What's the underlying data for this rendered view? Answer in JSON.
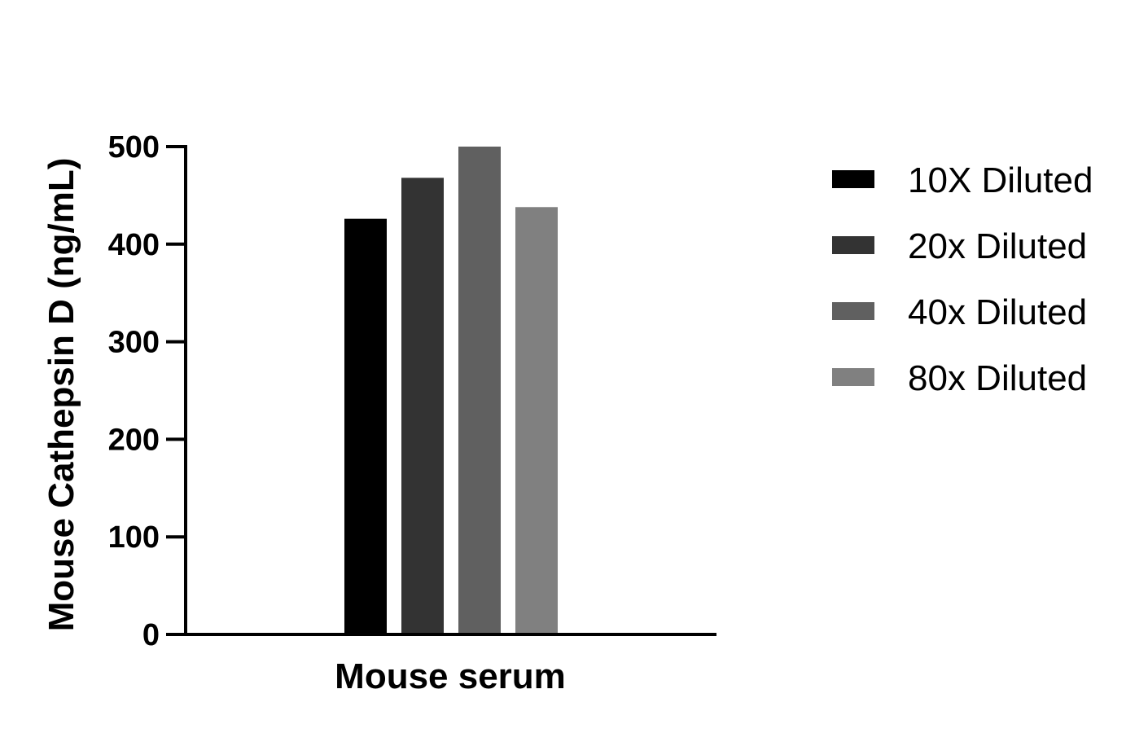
{
  "chart_data": {
    "type": "bar",
    "categories": [
      "Mouse serum"
    ],
    "series": [
      {
        "name": "10X Diluted",
        "values": [
          426
        ],
        "color": "#000000"
      },
      {
        "name": "20x Diluted",
        "values": [
          468
        ],
        "color": "#333333"
      },
      {
        "name": "40x Diluted",
        "values": [
          500
        ],
        "color": "#606060"
      },
      {
        "name": "80x Diluted",
        "values": [
          438
        ],
        "color": "#808080"
      }
    ],
    "xlabel": "Mouse serum",
    "ylabel": "Mouse Cathepsin D (ng/mL)",
    "ylim": [
      0,
      500
    ],
    "yticks": [
      0,
      100,
      200,
      300,
      400,
      500
    ],
    "ytick_labels": [
      "0",
      "100",
      "200",
      "300",
      "400",
      "500"
    ],
    "grid": false,
    "legend_position": "right"
  }
}
